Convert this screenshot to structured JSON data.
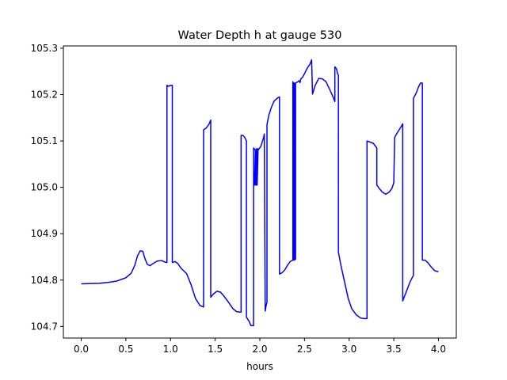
{
  "chart_data": {
    "type": "line",
    "title": "Water Depth h at gauge 530",
    "xlabel": "hours",
    "ylabel": "",
    "xlim": [
      -0.2,
      4.2
    ],
    "ylim": [
      104.675,
      105.305
    ],
    "xticks": [
      0.0,
      0.5,
      1.0,
      1.5,
      2.0,
      2.5,
      3.0,
      3.5,
      4.0
    ],
    "xtick_labels": [
      "0.0",
      "0.5",
      "1.0",
      "1.5",
      "2.0",
      "2.5",
      "3.0",
      "3.5",
      "4.0"
    ],
    "yticks": [
      104.7,
      104.8,
      104.9,
      105.0,
      105.1,
      105.2,
      105.3
    ],
    "ytick_labels": [
      "104.7",
      "104.8",
      "104.9",
      "105.0",
      "105.1",
      "105.2",
      "105.3"
    ],
    "grid": false,
    "series": [
      {
        "color": "#0000ff",
        "x": [
          0.0,
          0.2,
          0.3,
          0.4,
          0.5,
          0.56,
          0.6,
          0.63,
          0.66,
          0.69,
          0.71,
          0.74,
          0.77,
          0.8,
          0.85,
          0.9,
          0.95,
          0.96,
          0.96,
          0.98,
          1.0,
          1.02,
          1.02,
          1.05,
          1.08,
          1.12,
          1.18,
          1.23,
          1.28,
          1.33,
          1.37,
          1.37,
          1.4,
          1.43,
          1.45,
          1.45,
          1.48,
          1.52,
          1.56,
          1.6,
          1.65,
          1.7,
          1.74,
          1.78,
          1.79,
          1.79,
          1.81,
          1.83,
          1.85,
          1.85,
          1.88,
          1.9,
          1.93,
          1.93,
          1.95,
          1.94,
          1.96,
          1.95,
          1.97,
          1.96,
          1.98,
          1.97,
          1.98,
          2.01,
          2.04,
          2.05,
          2.06,
          2.07,
          2.08,
          2.08,
          2.1,
          2.13,
          2.16,
          2.2,
          2.22,
          2.22,
          2.25,
          2.28,
          2.31,
          2.34,
          2.37,
          2.37,
          2.38,
          2.38,
          2.39,
          2.39,
          2.4,
          2.4,
          2.42,
          2.44,
          2.45,
          2.46,
          2.48,
          2.5,
          2.52,
          2.54,
          2.56,
          2.58,
          2.59,
          2.59,
          2.62,
          2.66,
          2.7,
          2.74,
          2.78,
          2.82,
          2.84,
          2.84,
          2.86,
          2.87,
          2.88,
          2.88,
          2.91,
          2.95,
          2.99,
          3.03,
          3.08,
          3.13,
          3.17,
          3.2,
          3.2,
          3.23,
          3.27,
          3.31,
          3.31,
          3.34,
          3.37,
          3.41,
          3.45,
          3.48,
          3.5,
          3.51,
          3.54,
          3.57,
          3.6,
          3.6,
          3.62,
          3.64,
          3.66,
          3.68,
          3.7,
          3.72,
          3.72,
          3.75,
          3.78,
          3.8,
          3.82,
          3.82,
          3.85,
          3.88,
          3.92,
          3.96,
          4.0
        ],
        "y": [
          104.792,
          104.793,
          104.795,
          104.798,
          104.805,
          104.815,
          104.832,
          104.852,
          104.863,
          104.862,
          104.848,
          104.834,
          104.831,
          104.835,
          104.841,
          104.842,
          104.838,
          104.838,
          105.22,
          105.218,
          105.22,
          105.22,
          104.838,
          104.84,
          104.836,
          104.825,
          104.814,
          104.79,
          104.76,
          104.745,
          104.742,
          105.124,
          105.128,
          105.136,
          105.145,
          104.763,
          104.77,
          104.776,
          104.774,
          104.765,
          104.752,
          104.738,
          104.732,
          104.731,
          104.731,
          105.112,
          105.112,
          105.108,
          105.1,
          104.72,
          104.711,
          104.702,
          104.702,
          105.085,
          105.08,
          105.005,
          105.083,
          105.005,
          105.083,
          105.005,
          105.083,
          105.005,
          105.08,
          105.088,
          105.106,
          105.115,
          104.733,
          104.745,
          104.752,
          105.135,
          105.155,
          105.173,
          105.186,
          105.193,
          105.195,
          104.813,
          104.816,
          104.822,
          104.832,
          104.84,
          104.843,
          105.228,
          104.843,
          105.225,
          104.843,
          105.225,
          104.845,
          105.225,
          105.227,
          105.23,
          105.226,
          105.234,
          105.238,
          105.245,
          105.253,
          105.26,
          105.265,
          105.275,
          105.201,
          105.201,
          105.22,
          105.235,
          105.234,
          105.228,
          105.212,
          105.195,
          105.185,
          105.26,
          105.255,
          105.245,
          105.242,
          104.86,
          104.83,
          104.795,
          104.76,
          104.738,
          104.725,
          104.718,
          104.717,
          104.717,
          105.1,
          105.098,
          105.095,
          105.085,
          105.005,
          104.997,
          104.99,
          104.985,
          104.99,
          104.998,
          105.01,
          105.108,
          105.118,
          105.127,
          105.137,
          104.755,
          104.765,
          104.775,
          104.785,
          104.795,
          104.803,
          104.81,
          105.192,
          105.203,
          105.218,
          105.225,
          105.225,
          104.843,
          104.843,
          104.838,
          104.828,
          104.82,
          104.818
        ]
      }
    ]
  }
}
